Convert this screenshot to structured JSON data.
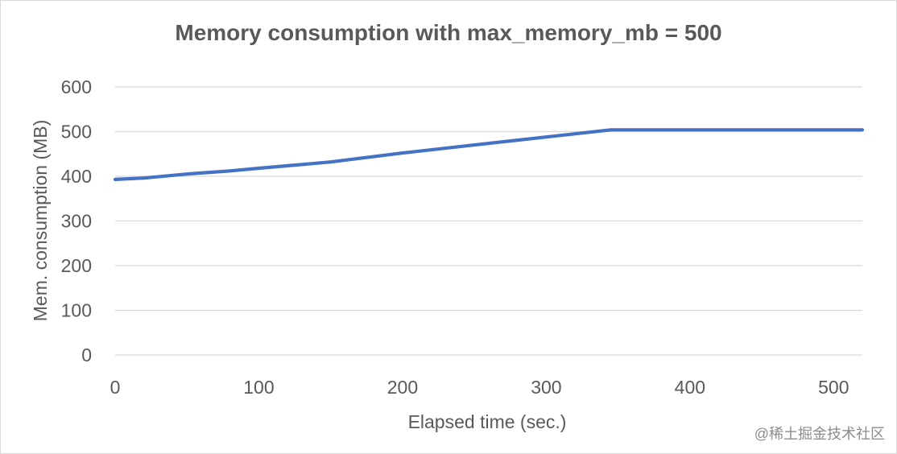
{
  "chart_data": {
    "type": "line",
    "title": "Memory consumption with max_memory_mb = 500",
    "xlabel": "Elapsed time (sec.)",
    "ylabel": "Mem. consumption (MB)",
    "xlim": [
      0,
      520
    ],
    "ylim": [
      0,
      600
    ],
    "x_ticks": [
      0,
      100,
      200,
      300,
      400,
      500
    ],
    "y_ticks": [
      0,
      100,
      200,
      300,
      400,
      500,
      600
    ],
    "grid": true,
    "legend": "none",
    "series": [
      {
        "color": "#4472c4",
        "x": [
          0,
          20,
          50,
          80,
          100,
          150,
          200,
          250,
          300,
          345,
          400,
          450,
          500,
          520
        ],
        "y": [
          393,
          396,
          405,
          412,
          418,
          432,
          452,
          470,
          488,
          504,
          504,
          504,
          504,
          504
        ]
      }
    ]
  },
  "watermark": "@稀土掘金技术社区"
}
